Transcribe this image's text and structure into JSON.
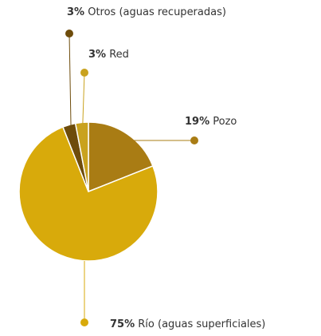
{
  "chart_data": {
    "type": "pie",
    "categories": [
      "Pozo",
      "Río (aguas superficiales)",
      "Otros (aguas recuperadas)",
      "Red"
    ],
    "values": [
      19,
      75,
      3,
      3
    ],
    "value_labels": [
      "19%",
      "75%",
      "3%",
      "3%"
    ],
    "colors": [
      "#a97c14",
      "#d8aa0b",
      "#6e4c0b",
      "#c9a21e"
    ]
  }
}
